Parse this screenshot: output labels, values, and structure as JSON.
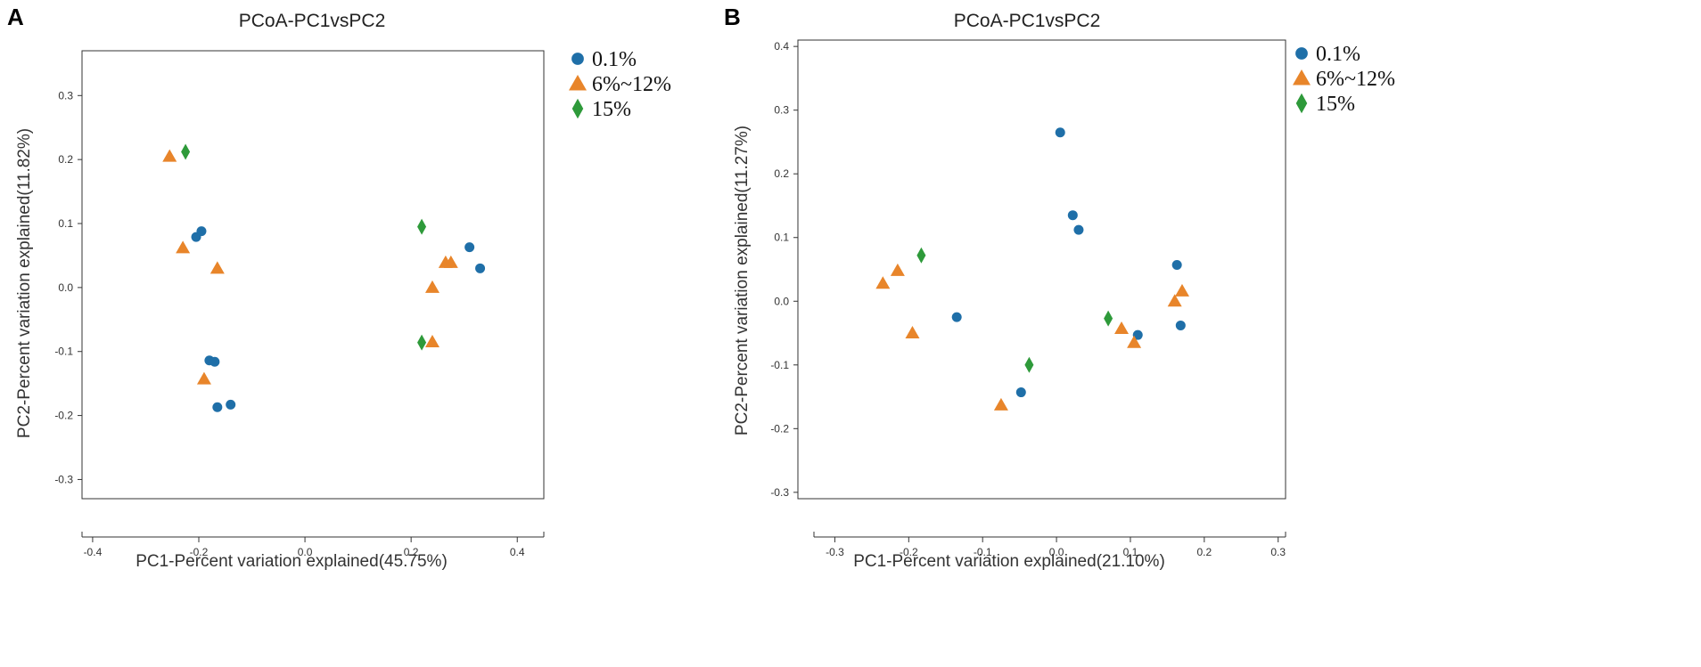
{
  "chart_data": [
    {
      "type": "scatter",
      "panel": "A",
      "title": "PCoA-PC1vsPC2",
      "xlabel": "PC1-Percent variation explained(45.75%)",
      "ylabel": "PC2-Percent variation explained(11.82%)",
      "xlim": [
        -0.42,
        0.45
      ],
      "ylim": [
        -0.33,
        0.37
      ],
      "xticks": [
        -0.4,
        -0.2,
        0.0,
        0.2,
        0.4
      ],
      "xtick_labels": [
        "-0.4",
        "-0.2",
        "0.0",
        "0.2",
        "0.4"
      ],
      "yticks": [
        -0.3,
        -0.2,
        -0.1,
        0.0,
        0.1,
        0.2,
        0.3
      ],
      "ytick_labels": [
        "-0.3",
        "-0.2",
        "-0.1",
        "0.0",
        "0.1",
        "0.2",
        "0.3"
      ],
      "legend": [
        "0.1%",
        "6%~12%",
        "15%"
      ],
      "legend_position": "top-right-outside",
      "series": [
        {
          "name": "0.1%",
          "marker": "circle",
          "color": "#1f6fa8",
          "points": [
            [
              -0.205,
              0.079
            ],
            [
              -0.195,
              0.088
            ],
            [
              -0.18,
              -0.114
            ],
            [
              -0.17,
              -0.116
            ],
            [
              -0.165,
              -0.187
            ],
            [
              -0.14,
              -0.183
            ],
            [
              0.31,
              0.063
            ],
            [
              0.33,
              0.03
            ]
          ]
        },
        {
          "name": "6%~12%",
          "marker": "triangle",
          "color": "#e8852a",
          "points": [
            [
              -0.255,
              0.205
            ],
            [
              -0.23,
              0.062
            ],
            [
              -0.165,
              0.03
            ],
            [
              -0.19,
              -0.143
            ],
            [
              0.265,
              0.039
            ],
            [
              0.275,
              0.039
            ],
            [
              0.24,
              0.0
            ],
            [
              0.24,
              -0.085
            ]
          ]
        },
        {
          "name": "15%",
          "marker": "diamond",
          "color": "#2e9a3a",
          "points": [
            [
              -0.225,
              0.212
            ],
            [
              0.22,
              0.095
            ],
            [
              0.22,
              -0.086
            ]
          ]
        }
      ]
    },
    {
      "type": "scatter",
      "panel": "B",
      "title": "PCoA-PC1vsPC2",
      "xlabel": "PC1-Percent variation explained(21.10%)",
      "ylabel": "PC2-Percent variation explained(11.27%)",
      "xlim": [
        -0.35,
        0.31
      ],
      "ylim": [
        -0.31,
        0.41
      ],
      "xticks": [
        -0.3,
        -0.2,
        -0.1,
        0.0,
        0.1,
        0.2,
        0.3
      ],
      "xtick_labels": [
        "-0.3",
        "-0.2",
        "-0.1",
        "0.0",
        "0.1",
        "0.2",
        "0.3"
      ],
      "yticks": [
        -0.3,
        -0.2,
        -0.1,
        0.0,
        0.1,
        0.2,
        0.3,
        0.4
      ],
      "ytick_labels": [
        "-0.3",
        "-0.2",
        "-0.1",
        "0.0",
        "0.1",
        "0.2",
        "0.3",
        "0.4"
      ],
      "legend": [
        "0.1%",
        "6%~12%",
        "15%"
      ],
      "legend_position": "top-right-outside",
      "series": [
        {
          "name": "0.1%",
          "marker": "circle",
          "color": "#1f6fa8",
          "points": [
            [
              0.005,
              0.265
            ],
            [
              0.022,
              0.135
            ],
            [
              0.03,
              0.112
            ],
            [
              -0.135,
              -0.025
            ],
            [
              -0.048,
              -0.143
            ],
            [
              0.11,
              -0.053
            ],
            [
              0.163,
              0.057
            ],
            [
              0.168,
              -0.038
            ]
          ]
        },
        {
          "name": "6%~12%",
          "marker": "triangle",
          "color": "#e8852a",
          "points": [
            [
              -0.235,
              0.028
            ],
            [
              -0.215,
              0.048
            ],
            [
              -0.195,
              -0.05
            ],
            [
              -0.075,
              -0.163
            ],
            [
              0.088,
              -0.043
            ],
            [
              0.105,
              -0.065
            ],
            [
              0.16,
              0.0
            ],
            [
              0.17,
              0.016
            ]
          ]
        },
        {
          "name": "15%",
          "marker": "diamond",
          "color": "#2e9a3a",
          "points": [
            [
              -0.183,
              0.072
            ],
            [
              -0.037,
              -0.1
            ],
            [
              0.07,
              -0.027
            ]
          ]
        }
      ]
    }
  ]
}
